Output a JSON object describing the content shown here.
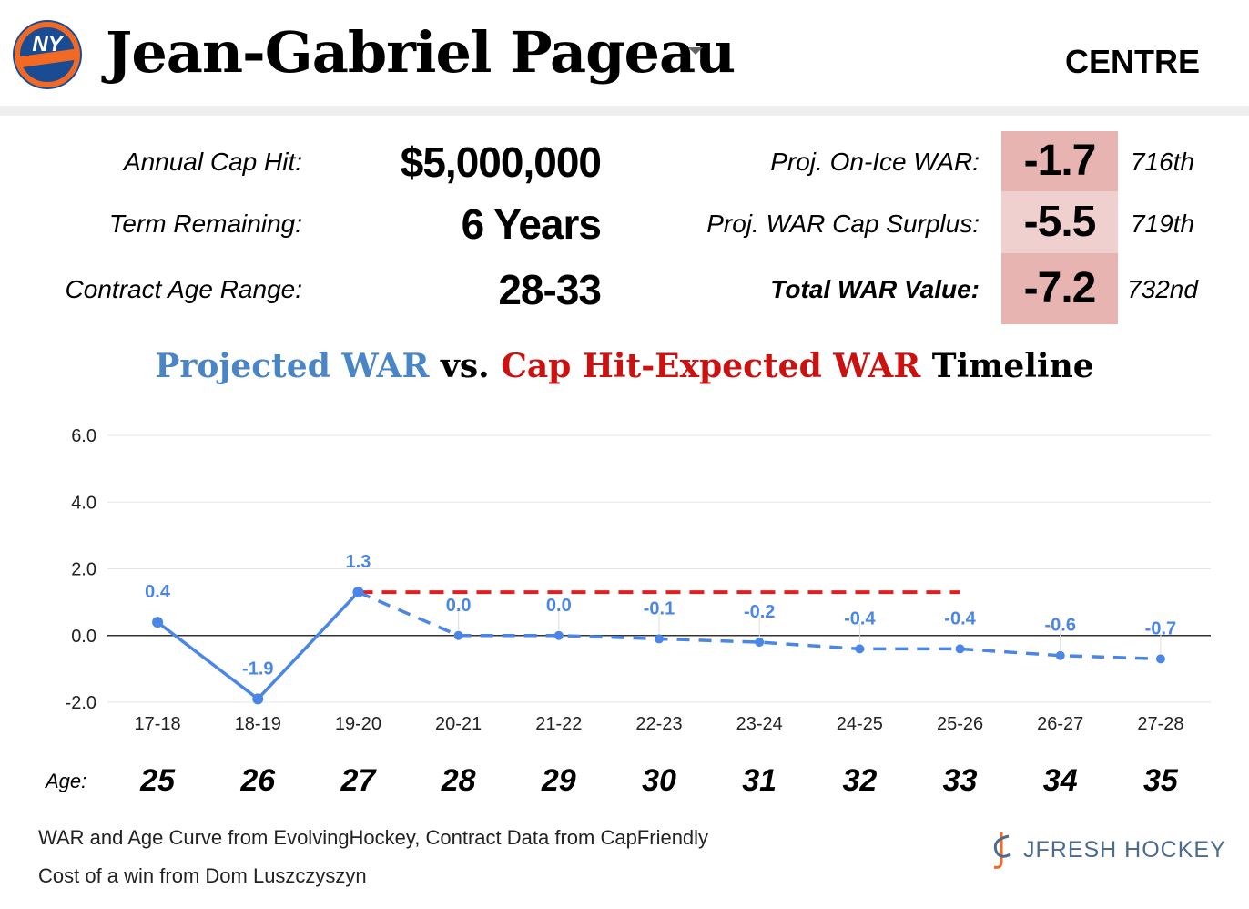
{
  "header": {
    "player_name": "Jean-Gabriel Pageau",
    "position": "CENTRE",
    "team_logo_icon": "ny-islanders-logo-icon",
    "team_logo_text": "NY ISLANDERS"
  },
  "contract": {
    "cap_hit_label": "Annual Cap Hit:",
    "cap_hit_value": "$5,000,000",
    "term_label": "Term Remaining:",
    "term_value": "6 Years",
    "age_range_label": "Contract Age Range:",
    "age_range_value": "28-33"
  },
  "war_summary": {
    "onice_label": "Proj. On-Ice WAR:",
    "onice_value": "-1.7",
    "onice_rank": "716th",
    "surplus_label": "Proj. WAR Cap Surplus:",
    "surplus_value": "-5.5",
    "surplus_rank": "719th",
    "total_label": "Total WAR Value:",
    "total_value": "-7.2",
    "total_rank": "732nd",
    "cell_colors": [
      "#e8b4b2",
      "#f0d0ce",
      "#e8b4b2"
    ]
  },
  "chart_title": {
    "part1": "Projected WAR",
    "part2": " vs. ",
    "part3": "Cap Hit-Expected WAR",
    "part4": " Timeline"
  },
  "chart_data": {
    "type": "line",
    "categories": [
      "17-18",
      "18-19",
      "19-20",
      "20-21",
      "21-22",
      "22-23",
      "23-24",
      "24-25",
      "25-26",
      "26-27",
      "27-28"
    ],
    "ylim": [
      -2.0,
      6.0
    ],
    "yticks": [
      "-2.0",
      "0.0",
      "2.0",
      "4.0",
      "6.0"
    ],
    "grid": true,
    "series": [
      {
        "color": "#4a86e8",
        "values": [
          0.4,
          -1.9,
          1.3,
          0.0,
          0.0,
          -0.1,
          -0.2,
          -0.4,
          -0.4,
          -0.6,
          -0.7
        ],
        "labels": [
          "0.4",
          "-1.9",
          "1.3",
          "0.0",
          "0.0",
          "-0.1",
          "-0.2",
          "-0.4",
          "-0.4",
          "-0.6",
          "-0.7"
        ],
        "solid_through": "19-20",
        "dashed_from": "19-20"
      },
      {
        "color": "#e02020",
        "style": "dashed",
        "values": [
          null,
          null,
          1.3,
          1.3,
          1.3,
          1.3,
          1.3,
          1.3,
          1.3,
          null,
          null
        ]
      }
    ]
  },
  "ages": {
    "label": "Age:",
    "values": [
      "25",
      "26",
      "27",
      "28",
      "29",
      "30",
      "31",
      "32",
      "33",
      "34",
      "35"
    ]
  },
  "footer": {
    "line1": "WAR and Age Curve from EvolvingHockey, Contract Data from CapFriendly",
    "line2": "Cost of a win from Dom Luszczyszyn",
    "brand": "JFRESH HOCKEY",
    "brand_icon": "jfresh-hockey-logo-icon"
  }
}
